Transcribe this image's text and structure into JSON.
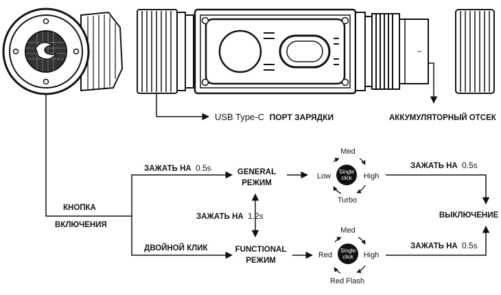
{
  "labels": {
    "usb_port_prefix": "USB Type-C",
    "usb_port_suffix": "ПОРТ ЗАРЯДКИ",
    "battery_compartment": "АККУМУЛЯТОРНЫЙ ОТСЕК",
    "button_line1": "КНОПКА",
    "button_line2": "ВКЛЮЧЕНИЯ",
    "hold_top_prefix": "ЗАЖАТЬ НА",
    "hold_top_time": "0.5s",
    "double_click": "ДВОЙНОЙ КЛИК",
    "hold_mid_prefix": "ЗАЖАТЬ НА",
    "hold_mid_time": "1.2s",
    "general_mode_line1": "GENERAL",
    "general_mode_line2": "РЕЖИМ",
    "functional_mode_line1": "FUNCTIONAL",
    "functional_mode_line2": "РЕЖИМ",
    "hold_right_top_prefix": "ЗАЖАТЬ НА",
    "hold_right_top_time": "0.5s",
    "hold_right_bottom_prefix": "ЗАЖАТЬ НА",
    "hold_right_bottom_time": "0.5s",
    "off": "ВЫКЛЮЧЕНИЕ",
    "battery_minus": "−"
  },
  "general_cycle": {
    "top": "Med",
    "left": "Low",
    "right": "High",
    "bottom": "Turbo",
    "center_line1": "Single",
    "center_line2": "click"
  },
  "functional_cycle": {
    "top": "Med",
    "left": "Red",
    "right": "High",
    "bottom": "Red Flash",
    "center_line1": "Single",
    "center_line2": "click"
  }
}
